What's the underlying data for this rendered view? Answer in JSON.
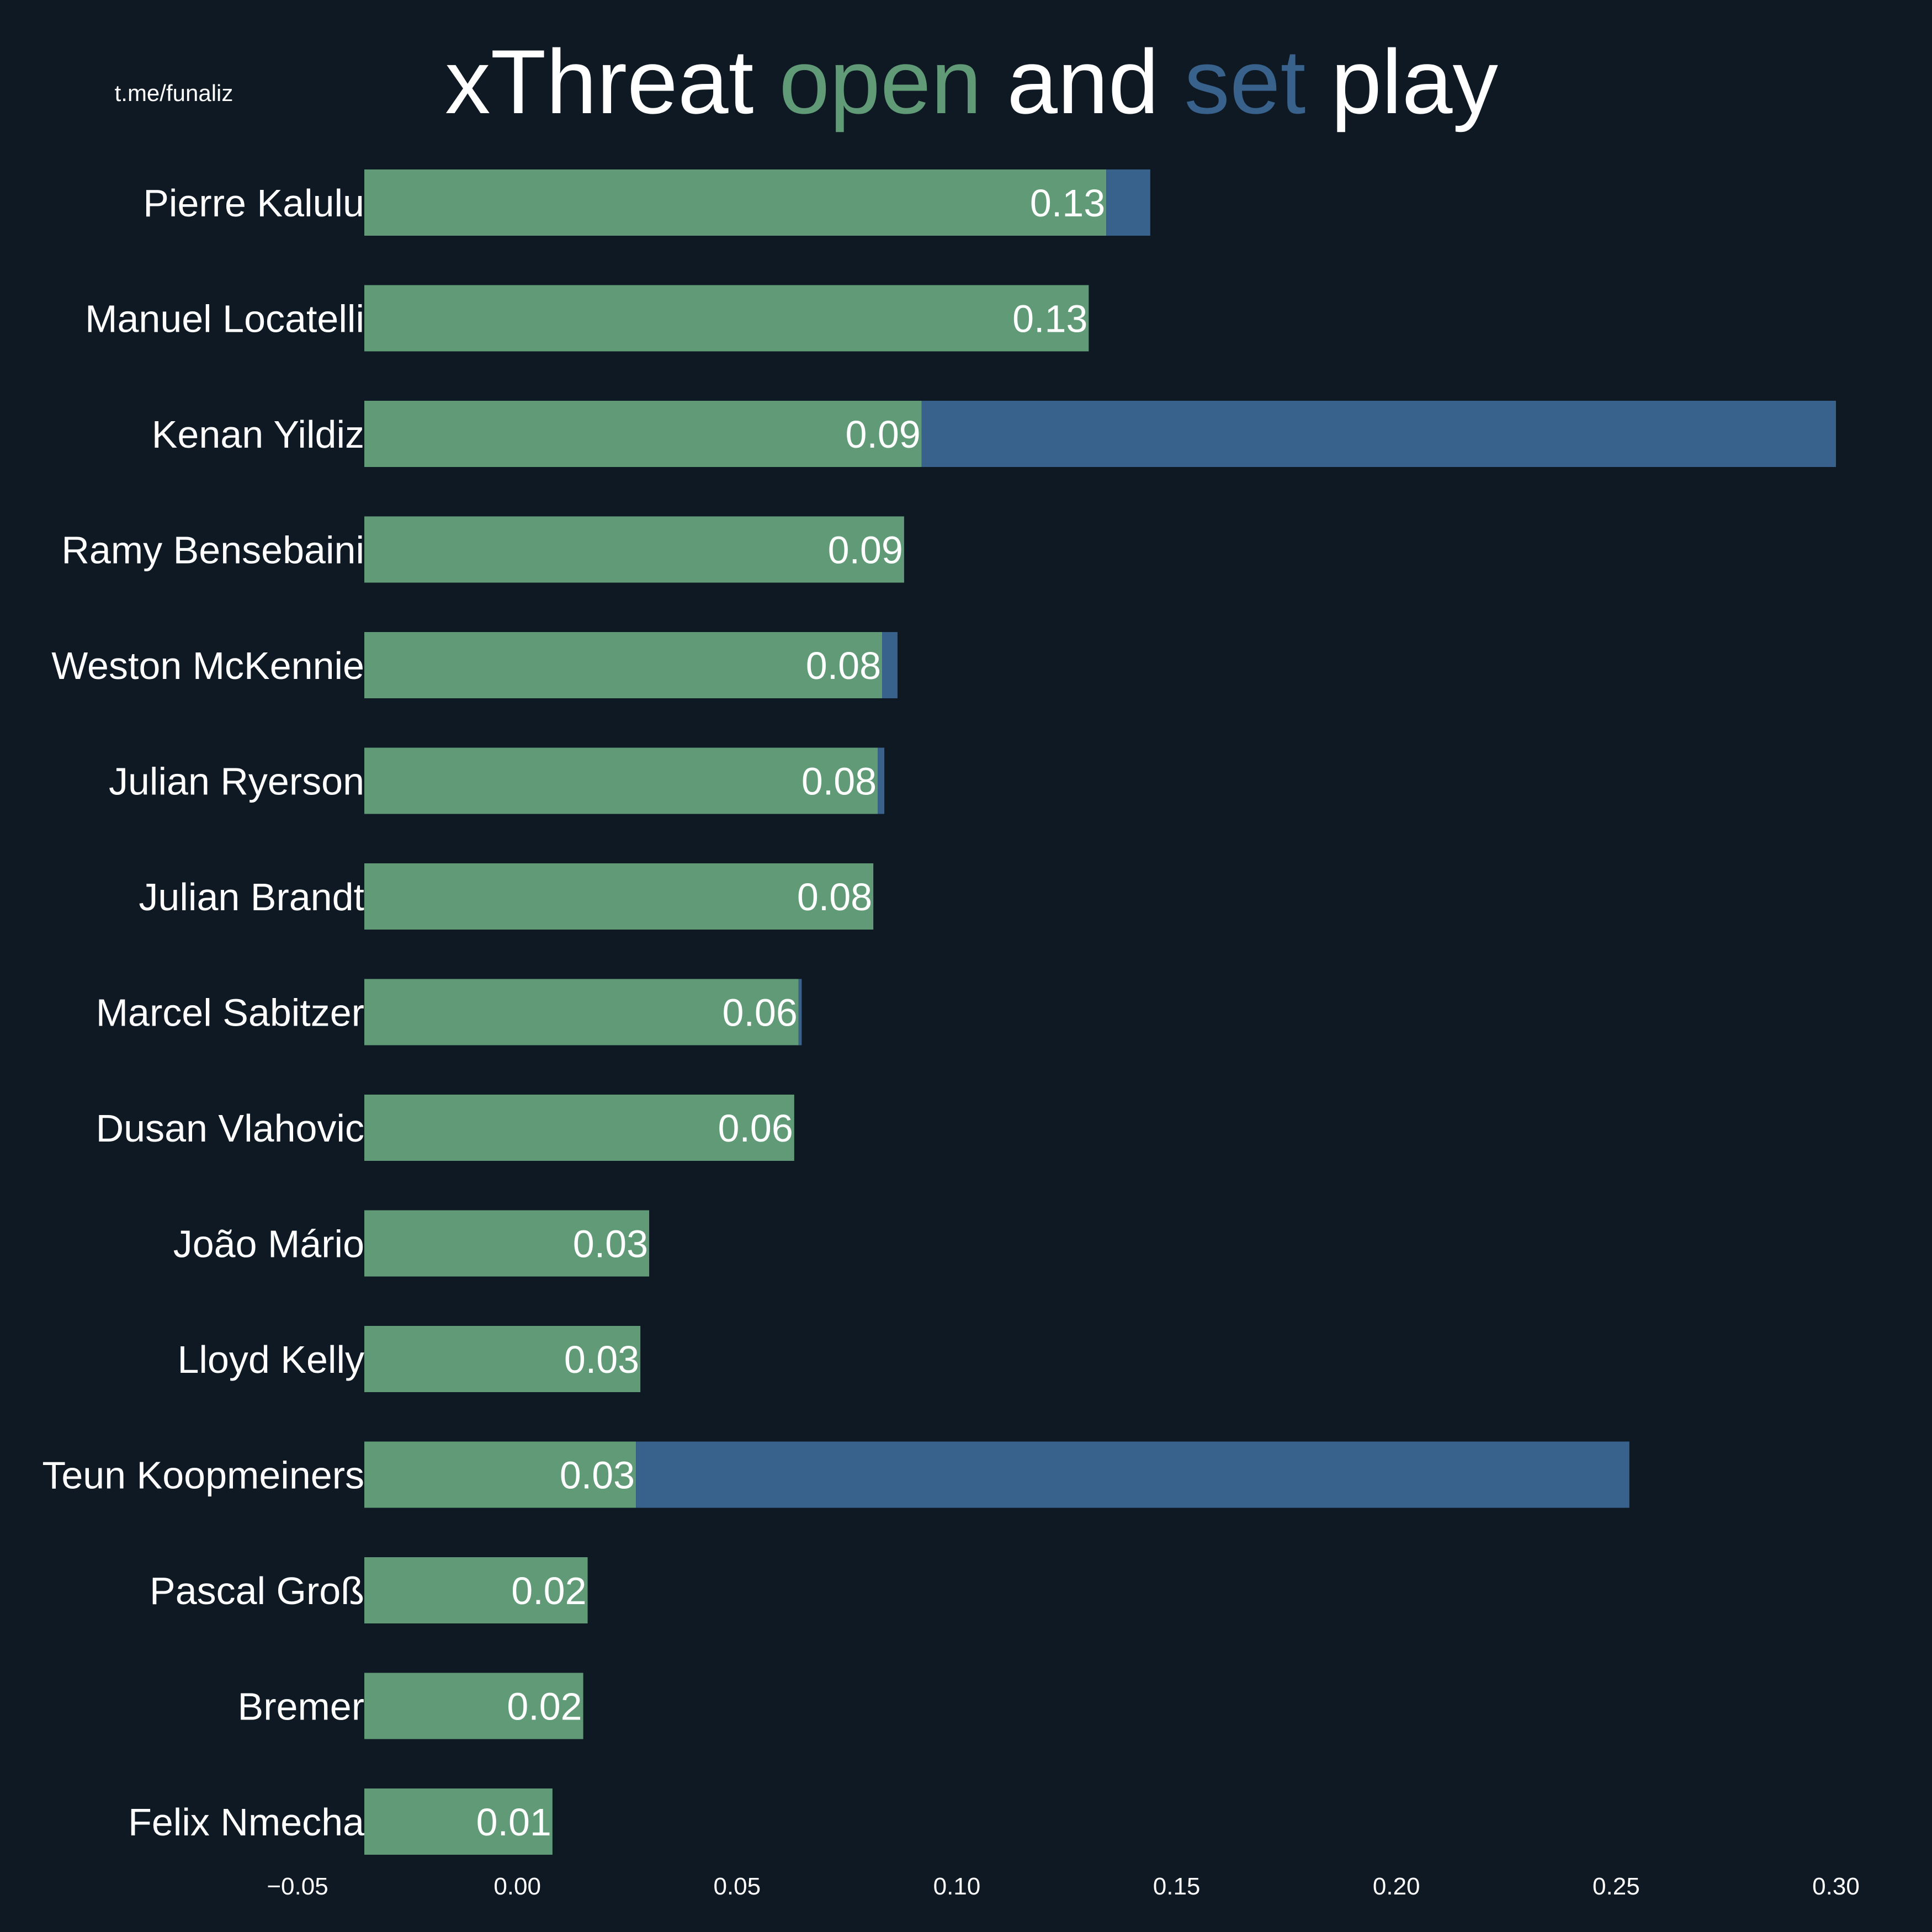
{
  "watermark": "t.me/funaliz",
  "title": {
    "parts": [
      {
        "text": "xThreat ",
        "role": "plain"
      },
      {
        "text": "open",
        "role": "open"
      },
      {
        "text": " and ",
        "role": "plain"
      },
      {
        "text": "set",
        "role": "set"
      },
      {
        "text": " play",
        "role": "plain"
      }
    ]
  },
  "colors": {
    "background": "#0f1923",
    "open": "#609a77",
    "set": "#38618c",
    "text": "#ffffff"
  },
  "chart_data": {
    "type": "bar",
    "orientation": "horizontal",
    "stacked": true,
    "title": "xThreat open and set play",
    "xlim": [
      -0.05,
      0.31
    ],
    "x_ticks": [
      "−0.05",
      "0.00",
      "0.05",
      "0.10",
      "0.15",
      "0.20",
      "0.25",
      "0.30"
    ],
    "x_tick_values": [
      -0.05,
      0.0,
      0.05,
      0.1,
      0.15,
      0.2,
      0.25,
      0.3
    ],
    "grid": false,
    "categories": [
      "Pierre Kalulu",
      "Manuel Locatelli",
      "Kenan Yildiz",
      "Ramy Bensebaini",
      "Weston McKennie",
      "Julian Ryerson",
      "Julian Brandt",
      "Marcel Sabitzer",
      "Dusan Vlahovic",
      "João Mário",
      "Lloyd Kelly",
      "Teun Koopmeiners",
      "Pascal Groß",
      "Bremer",
      "Felix Nmecha"
    ],
    "series": [
      {
        "role": "open",
        "values": [
          0.134,
          0.13,
          0.092,
          0.088,
          0.083,
          0.082,
          0.081,
          0.064,
          0.063,
          0.03,
          0.028,
          0.027,
          0.016,
          0.015,
          0.008
        ]
      },
      {
        "role": "set",
        "values": [
          0.01,
          0.0,
          0.208,
          0.0,
          0.0035,
          0.0015,
          0.0,
          0.0007,
          0.0,
          0.0,
          0.0,
          0.226,
          0.0,
          0.0,
          0.0
        ]
      }
    ],
    "data_labels": [
      "0.13",
      "0.13",
      "0.09",
      "0.09",
      "0.08",
      "0.08",
      "0.08",
      "0.06",
      "0.06",
      "0.03",
      "0.03",
      "0.03",
      "0.02",
      "0.02",
      "0.01"
    ]
  }
}
